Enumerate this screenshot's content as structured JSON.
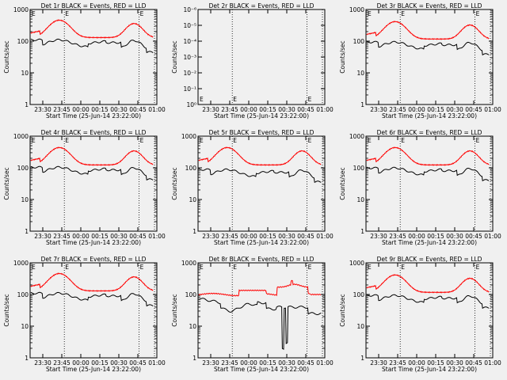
{
  "chart_data": [
    {
      "type": "line",
      "title": "Det 1r BLACK = Events, RED = LLD",
      "ylabel": "Counts/sec",
      "xlabel": "Start Time (25-Jun-14 23:22:00)",
      "ylim": [
        1,
        1000
      ],
      "ytick_labels": [
        "1000",
        "100",
        "10",
        "1"
      ],
      "x_ticks": [
        "23:30",
        "23:45",
        "00:00",
        "00:15",
        "00:30",
        "00:45",
        "01:00"
      ],
      "marker_labels": [
        "E",
        "E"
      ],
      "kind": "normal",
      "red_level": 1.0,
      "black_level": 1.0
    },
    {
      "type": "line",
      "title": "Det 2r BLACK = Events, RED = LLD",
      "ylabel": "Counts/sec",
      "xlabel": "Start Time (25-Jun-14 23:22:00)",
      "ylim": [
        1,
        1e-06
      ],
      "ytick_labels": [
        "10⁻⁶",
        "10⁻⁵",
        "10⁻⁴",
        "10⁻³",
        "10⁻²",
        "10⁻¹",
        "10⁰"
      ],
      "x_ticks": [
        "23:30",
        "23:45",
        "00:00",
        "00:15",
        "00:30",
        "00:45",
        "01:00"
      ],
      "marker_labels": [
        "E",
        "E"
      ],
      "kind": "empty"
    },
    {
      "type": "line",
      "title": "Det 3r BLACK = Events, RED = LLD",
      "ylabel": "Counts/sec",
      "xlabel": "Start Time (25-Jun-14 23:22:00)",
      "ylim": [
        1,
        1000
      ],
      "ytick_labels": [
        "1000",
        "100",
        "10",
        "1"
      ],
      "x_ticks": [
        "23:30",
        "23:45",
        "00:00",
        "00:15",
        "00:30",
        "00:45",
        "01:00"
      ],
      "marker_labels": [
        "E",
        "E"
      ],
      "kind": "normal",
      "red_level": 0.9,
      "black_level": 0.85
    },
    {
      "type": "line",
      "title": "Det 4r BLACK = Events, RED = LLD",
      "ylabel": "Counts/sec",
      "xlabel": "Start Time (25-Jun-14 23:22:00)",
      "ylim": [
        1,
        1000
      ],
      "ytick_labels": [
        "1000",
        "100",
        "10",
        "1"
      ],
      "x_ticks": [
        "23:30",
        "23:45",
        "00:00",
        "00:15",
        "00:30",
        "00:45",
        "01:00"
      ],
      "marker_labels": [
        "E",
        "E"
      ],
      "kind": "normal",
      "red_level": 0.95,
      "black_level": 0.95
    },
    {
      "type": "line",
      "title": "Det 5r BLACK = Events, RED = LLD",
      "ylabel": "Counts/sec",
      "xlabel": "Start Time (25-Jun-14 23:22:00)",
      "ylim": [
        1,
        1000
      ],
      "ytick_labels": [
        "1000",
        "100",
        "10",
        "1"
      ],
      "x_ticks": [
        "23:30",
        "23:45",
        "00:00",
        "00:15",
        "00:30",
        "00:45",
        "01:00"
      ],
      "marker_labels": [
        "E",
        "E"
      ],
      "kind": "normal",
      "red_level": 0.95,
      "black_level": 0.8
    },
    {
      "type": "line",
      "title": "Det 6r BLACK = Events, RED = LLD",
      "ylabel": "Counts/sec",
      "xlabel": "Start Time (25-Jun-14 23:22:00)",
      "ylim": [
        1,
        1000
      ],
      "ytick_labels": [
        "1000",
        "100",
        "10",
        "1"
      ],
      "x_ticks": [
        "23:30",
        "23:45",
        "00:00",
        "00:15",
        "00:30",
        "00:45",
        "01:00"
      ],
      "marker_labels": [
        "E",
        "E"
      ],
      "kind": "normal",
      "red_level": 0.95,
      "black_level": 0.9
    },
    {
      "type": "line",
      "title": "Det 7r BLACK = Events, RED = LLD",
      "ylabel": "Counts/sec",
      "xlabel": "Start Time (25-Jun-14 23:22:00)",
      "ylim": [
        1,
        1000
      ],
      "ytick_labels": [
        "1000",
        "100",
        "10",
        "1"
      ],
      "x_ticks": [
        "23:30",
        "23:45",
        "00:00",
        "00:15",
        "00:30",
        "00:45",
        "01:00"
      ],
      "marker_labels": [
        "E",
        "E"
      ],
      "kind": "normal",
      "red_level": 1.0,
      "black_level": 1.0
    },
    {
      "type": "line",
      "title": "Det 8r BLACK = Events, RED = LLD",
      "ylabel": "Counts/sec",
      "xlabel": "Start Time (25-Jun-14 23:22:00)",
      "ylim": [
        1,
        1000
      ],
      "ytick_labels": [
        "1000",
        "100",
        "10",
        "1"
      ],
      "x_ticks": [
        "23:30",
        "23:45",
        "00:00",
        "00:15",
        "00:30",
        "00:45",
        "01:00"
      ],
      "marker_labels": [
        "E",
        "E"
      ],
      "kind": "det8"
    },
    {
      "type": "line",
      "title": "Det 9r BLACK = Events, RED = LLD",
      "ylabel": "Counts/sec",
      "xlabel": "Start Time (25-Jun-14 23:22:00)",
      "ylim": [
        1,
        1000
      ],
      "ytick_labels": [
        "1000",
        "100",
        "10",
        "1"
      ],
      "x_ticks": [
        "23:30",
        "23:45",
        "00:00",
        "00:15",
        "00:30",
        "00:45",
        "01:00"
      ],
      "marker_labels": [
        "E",
        "E"
      ],
      "kind": "normal",
      "red_level": 0.9,
      "black_level": 0.85
    }
  ],
  "colors": {
    "events": "#000000",
    "lld": "#ff0000",
    "background": "#f0f0f0"
  },
  "x_range_minutes_after_start": [
    -2,
    98
  ],
  "tick_minutes_after_start": [
    8,
    23,
    38,
    53,
    68,
    83,
    98
  ],
  "eclipse_minutes_after_start": [
    25,
    84
  ]
}
